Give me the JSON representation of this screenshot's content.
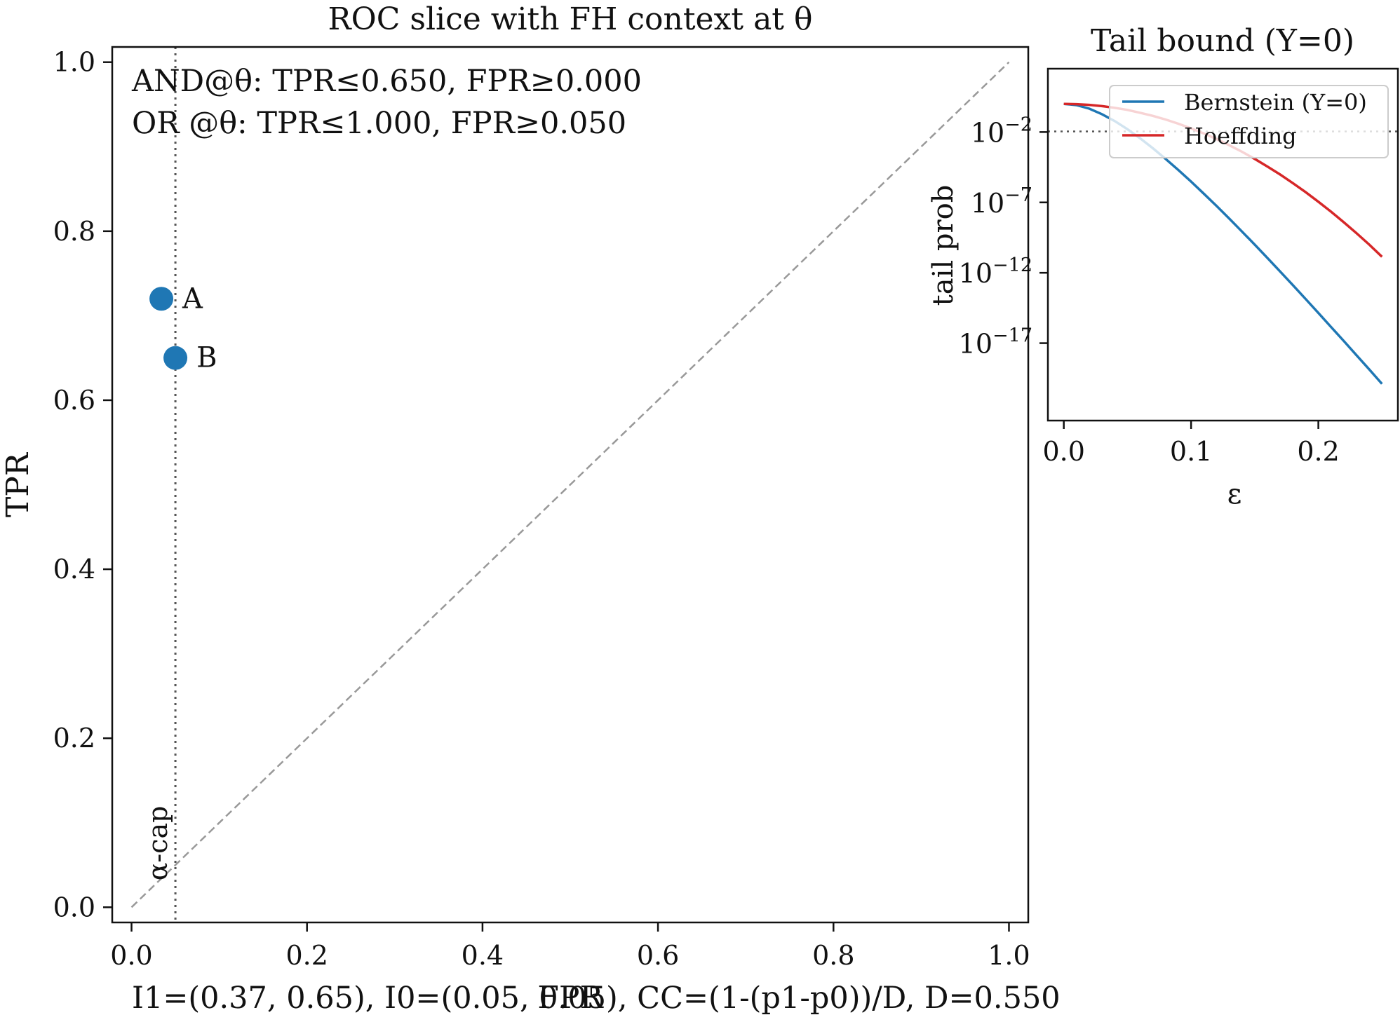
{
  "chart_data": [
    {
      "type": "scatter",
      "title": "ROC slice with FH context at θ",
      "xlabel": "FPR",
      "ylabel": "TPR",
      "xlim": [
        -0.022,
        1.022
      ],
      "ylim": [
        -0.018,
        1.018
      ],
      "xticks": [
        0.0,
        0.2,
        0.4,
        0.6,
        0.8,
        1.0
      ],
      "yticks": [
        0.0,
        0.2,
        0.4,
        0.6,
        0.8,
        1.0
      ],
      "xtick_labels": [
        "0.0",
        "0.2",
        "0.4",
        "0.6",
        "0.8",
        "1.0"
      ],
      "ytick_labels": [
        "0.0",
        "0.2",
        "0.4",
        "0.6",
        "0.8",
        "1.0"
      ],
      "grid": false,
      "diagonal": {
        "x": [
          0,
          1
        ],
        "y": [
          0,
          1
        ],
        "style": "dashed",
        "color": "#999999"
      },
      "alpha_cap": {
        "x": 0.05,
        "label": "α-cap",
        "style": "dotted",
        "color": "#555555"
      },
      "points": [
        {
          "label": "A",
          "x": 0.034,
          "y": 0.72,
          "color": "#1f77b4"
        },
        {
          "label": "B",
          "x": 0.05,
          "y": 0.65,
          "color": "#1f77b4"
        }
      ],
      "annotations": [
        "AND@θ: TPR≤0.650, FPR≥0.000",
        "OR @θ: TPR≤1.000,  FPR≥0.050"
      ],
      "footer": "I1=(0.37, 0.65), I0=(0.05, 0.05), CC=(1-(p1-p0))/D, D=0.550"
    },
    {
      "type": "line",
      "title": "Tail bound (Y=0)",
      "xlabel": "ε",
      "ylabel": "tail prob",
      "xlim": [
        -0.0125,
        0.2625
      ],
      "ylim_log10": [
        -22.5,
        2.5
      ],
      "yscale": "log",
      "xticks": [
        0.0,
        0.1,
        0.2
      ],
      "xtick_labels": [
        "0.0",
        "0.1",
        "0.2"
      ],
      "yticks_exp": [
        -2,
        -7,
        -12,
        -17
      ],
      "ytick_labels": [
        "10",
        "10",
        "10",
        "10"
      ],
      "ytick_exponents": [
        "−2",
        "−7",
        "−12",
        "−17"
      ],
      "legend": "top-right",
      "threshold_log10": -1.96,
      "x": [
        0.0,
        0.01,
        0.02,
        0.03,
        0.04,
        0.05,
        0.06,
        0.07,
        0.08,
        0.09,
        0.1,
        0.11,
        0.12,
        0.13,
        0.14,
        0.15,
        0.16,
        0.17,
        0.18,
        0.19,
        0.2,
        0.21,
        0.22,
        0.23,
        0.24,
        0.25
      ],
      "series": [
        {
          "name": "Bernstein (Y=0)",
          "color": "#1f77b4",
          "log10_values": [
            0.0,
            -0.09,
            -0.34,
            -0.73,
            -1.22,
            -1.8,
            -2.45,
            -3.15,
            -3.91,
            -4.7,
            -5.52,
            -6.38,
            -7.25,
            -8.15,
            -9.07,
            -10.0,
            -10.95,
            -11.91,
            -12.88,
            -13.86,
            -14.85,
            -15.85,
            -16.85,
            -17.86,
            -18.87,
            -19.89
          ]
        },
        {
          "name": "Hoeffding",
          "color": "#d62728",
          "log10_values": [
            0.0,
            -0.02,
            -0.07,
            -0.16,
            -0.28,
            -0.43,
            -0.63,
            -0.85,
            -1.11,
            -1.41,
            -1.74,
            -2.1,
            -2.5,
            -2.94,
            -3.4,
            -3.91,
            -4.45,
            -5.02,
            -5.63,
            -6.27,
            -6.95,
            -7.66,
            -8.41,
            -9.19,
            -10.0,
            -10.86
          ]
        }
      ]
    }
  ]
}
